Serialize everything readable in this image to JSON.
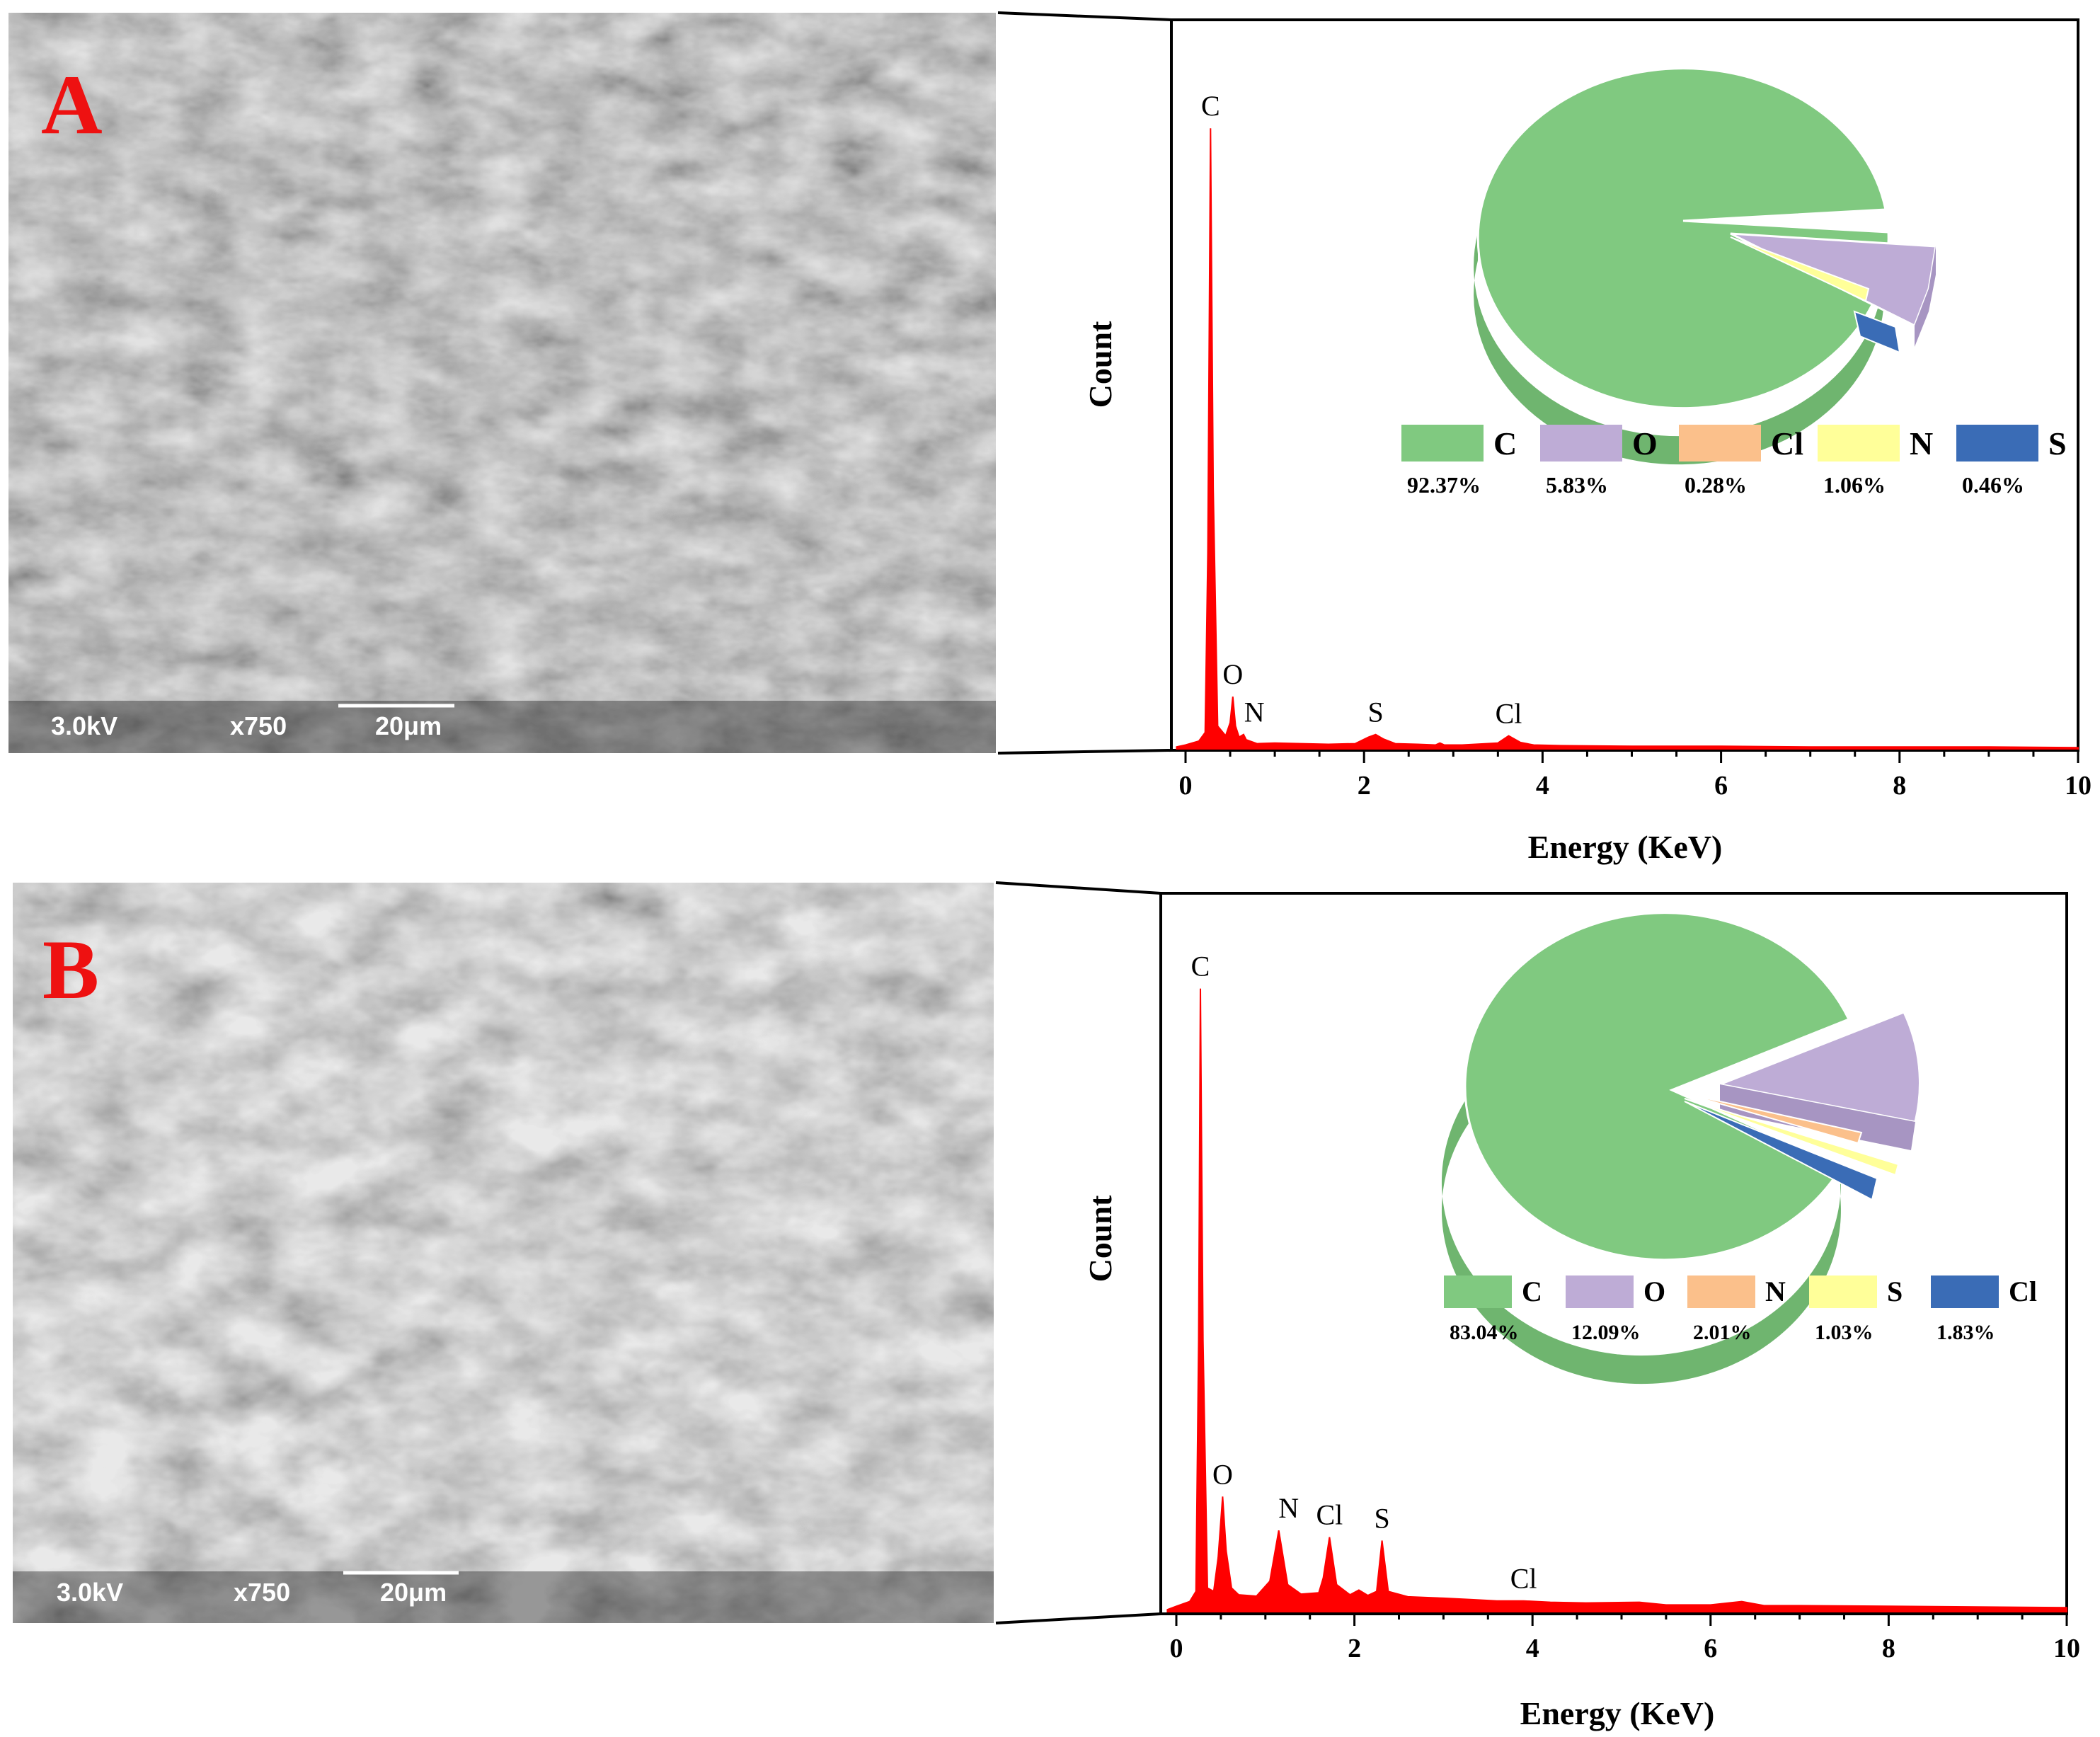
{
  "panels": [
    {
      "letter": "A",
      "sem": {
        "voltage": "3.0kV",
        "magnification": "x750",
        "scale_bar": "20μm"
      },
      "chart_data": {
        "type": "line",
        "xlabel": "Energy (KeV)",
        "ylabel": "Count",
        "xlim": [
          0,
          10
        ],
        "ylim": [
          0,
          100
        ],
        "x_ticks": [
          "0",
          "2",
          "4",
          "6",
          "8",
          "10"
        ],
        "x": [
          -0.1,
          0.0,
          0.15,
          0.22,
          0.25,
          0.28,
          0.31,
          0.36,
          0.45,
          0.5,
          0.53,
          0.56,
          0.6,
          0.65,
          0.68,
          0.72,
          0.8,
          1.0,
          1.3,
          1.6,
          1.9,
          2.05,
          2.13,
          2.22,
          2.35,
          2.6,
          2.8,
          2.85,
          2.9,
          3.1,
          3.5,
          3.62,
          3.75,
          3.9,
          4.2,
          5.0,
          6.0,
          7.0,
          8.0,
          9.0,
          10.0
        ],
        "y": [
          0.3,
          0.6,
          1.2,
          2.5,
          30,
          95,
          40,
          3.5,
          2.0,
          4.0,
          8.0,
          3.5,
          1.8,
          2.2,
          1.4,
          1.2,
          0.8,
          0.9,
          0.8,
          0.7,
          0.8,
          1.8,
          2.2,
          1.5,
          0.8,
          0.7,
          0.6,
          0.9,
          0.6,
          0.6,
          0.9,
          2.0,
          1.0,
          0.6,
          0.5,
          0.4,
          0.4,
          0.3,
          0.3,
          0.3,
          0.2
        ],
        "peaks": [
          {
            "label": "C",
            "x": 0.28,
            "y": 95
          },
          {
            "label": "O",
            "x": 0.53,
            "y": 8
          },
          {
            "label": "N",
            "x": 0.66,
            "y": 2.2
          },
          {
            "label": "S",
            "x": 2.13,
            "y": 2.2
          },
          {
            "label": "Cl",
            "x": 3.62,
            "y": 2.0
          }
        ],
        "composition": [
          {
            "element": "C",
            "percent": "92.37%",
            "value": 92.37,
            "color": "#80C980"
          },
          {
            "element": "O",
            "percent": "5.83%",
            "value": 5.83,
            "color": "#BEACD6"
          },
          {
            "element": "Cl",
            "percent": "0.28%",
            "value": 0.28,
            "color": "#FBC08B"
          },
          {
            "element": "N",
            "percent": "1.06%",
            "value": 1.06,
            "color": "#FFFF99"
          },
          {
            "element": "S",
            "percent": "0.46%",
            "value": 0.46,
            "color": "#3A6CB6"
          }
        ],
        "line_color": "#FF0000"
      }
    },
    {
      "letter": "B",
      "sem": {
        "voltage": "3.0kV",
        "magnification": "x750",
        "scale_bar": "20μm"
      },
      "chart_data": {
        "type": "line",
        "xlabel": "Energy (KeV)",
        "ylabel": "Count",
        "xlim": [
          0,
          10
        ],
        "ylim": [
          0,
          100
        ],
        "x_ticks": [
          "0",
          "2",
          "4",
          "6",
          "8",
          "10"
        ],
        "x": [
          -0.1,
          0.0,
          0.15,
          0.22,
          0.25,
          0.27,
          0.3,
          0.35,
          0.42,
          0.47,
          0.52,
          0.56,
          0.62,
          0.7,
          0.9,
          1.05,
          1.15,
          1.25,
          1.4,
          1.6,
          1.65,
          1.72,
          1.8,
          1.95,
          2.05,
          2.15,
          2.25,
          2.31,
          2.38,
          2.6,
          3.0,
          3.3,
          3.6,
          3.9,
          4.2,
          4.6,
          5.2,
          5.5,
          6.0,
          6.35,
          6.6,
          7.0,
          8.0,
          9.0,
          10.0
        ],
        "y": [
          0.3,
          0.8,
          1.5,
          3.0,
          40,
          92,
          40,
          3.5,
          3.0,
          8.0,
          17,
          9.0,
          3.5,
          2.5,
          2.3,
          4.5,
          12,
          4.0,
          2.6,
          2.8,
          5.0,
          11,
          4.0,
          2.5,
          3.2,
          2.4,
          3.0,
          10.5,
          3.0,
          2.2,
          2.0,
          1.8,
          1.6,
          1.6,
          1.4,
          1.3,
          1.4,
          1.0,
          1.0,
          1.5,
          0.9,
          0.9,
          0.8,
          0.7,
          0.6
        ],
        "peaks": [
          {
            "label": "C",
            "x": 0.27,
            "y": 92
          },
          {
            "label": "O",
            "x": 0.52,
            "y": 17
          },
          {
            "label": "N",
            "x": 1.15,
            "y": 12
          },
          {
            "label": "Cl",
            "x": 1.72,
            "y": 11
          },
          {
            "label": "S",
            "x": 2.31,
            "y": 10.5
          },
          {
            "label": "Cl",
            "x": 3.9,
            "y": 1.6
          }
        ],
        "composition": [
          {
            "element": "C",
            "percent": "83.04%",
            "value": 83.04,
            "color": "#80C980"
          },
          {
            "element": "O",
            "percent": "12.09%",
            "value": 12.09,
            "color": "#BEACD6"
          },
          {
            "element": "N",
            "percent": "2.01%",
            "value": 2.01,
            "color": "#FBC08B"
          },
          {
            "element": "S",
            "percent": "1.03%",
            "value": 1.03,
            "color": "#FFFF99"
          },
          {
            "element": "Cl",
            "percent": "1.83%",
            "value": 1.83,
            "color": "#3A6CB6"
          }
        ],
        "line_color": "#FF0000"
      }
    }
  ]
}
